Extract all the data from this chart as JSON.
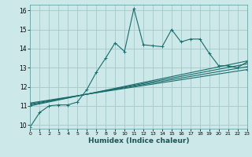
{
  "title": "",
  "xlabel": "Humidex (Indice chaleur)",
  "ylabel": "",
  "xlim": [
    0,
    23
  ],
  "ylim": [
    9.8,
    16.3
  ],
  "xticks": [
    0,
    1,
    2,
    3,
    4,
    5,
    6,
    7,
    8,
    9,
    10,
    11,
    12,
    13,
    14,
    15,
    16,
    17,
    18,
    19,
    20,
    21,
    22,
    23
  ],
  "yticks": [
    10,
    11,
    12,
    13,
    14,
    15,
    16
  ],
  "bg_color": "#cce8e8",
  "grid_color": "#aacccc",
  "line_color": "#1a6b6b",
  "line1": {
    "x": [
      0,
      1,
      2,
      3,
      4,
      5,
      6,
      7,
      8,
      9,
      10,
      11,
      12,
      13,
      14,
      15,
      16,
      17,
      18,
      19,
      20,
      21,
      22,
      23
    ],
    "y": [
      9.9,
      10.65,
      11.0,
      11.05,
      11.05,
      11.2,
      11.85,
      12.75,
      13.5,
      14.3,
      13.85,
      16.1,
      14.2,
      14.15,
      14.1,
      15.0,
      14.35,
      14.5,
      14.5,
      13.75,
      13.1,
      13.1,
      13.0,
      13.3
    ]
  },
  "linear_lines": [
    {
      "x0": 0,
      "y0": 11.0,
      "x1": 23,
      "y1": 13.35
    },
    {
      "x0": 0,
      "y0": 11.05,
      "x1": 23,
      "y1": 13.2
    },
    {
      "x0": 0,
      "y0": 11.1,
      "x1": 23,
      "y1": 13.05
    },
    {
      "x0": 0,
      "y0": 11.15,
      "x1": 23,
      "y1": 12.9
    }
  ]
}
